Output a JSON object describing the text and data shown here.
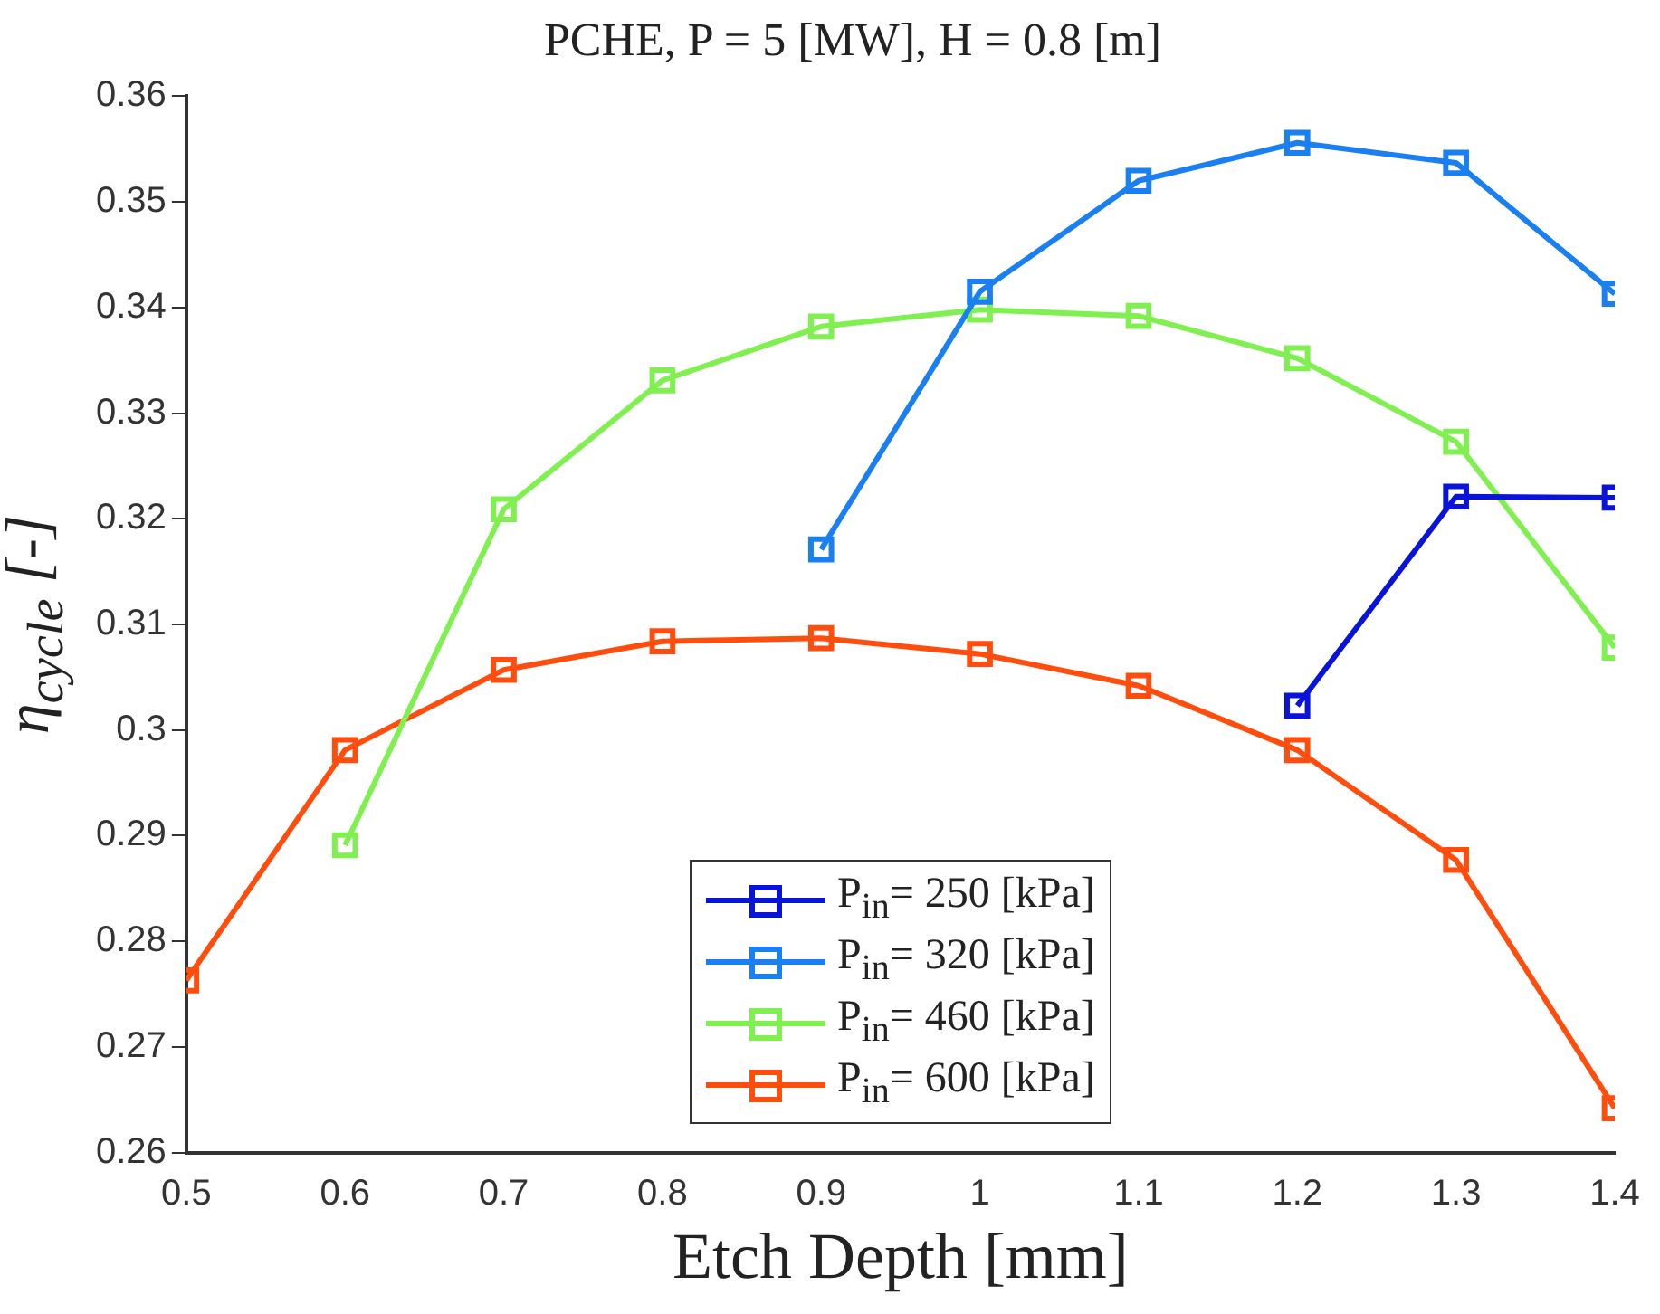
{
  "chart_data": {
    "type": "line",
    "title": "PCHE, P = 5 [MW], H = 0.8 [m]",
    "xlabel": "Etch Depth [mm]",
    "ylabel": "η$_{cycle}$  [-]",
    "xlim": [
      0.5,
      1.4
    ],
    "xticks": [
      0.5,
      0.6,
      0.7,
      0.8,
      0.9,
      1,
      1.1,
      1.2,
      1.3,
      1.4
    ],
    "ylim": [
      0.26,
      0.36
    ],
    "yticks": [
      0.26,
      0.27,
      0.28,
      0.29,
      0.3,
      0.31,
      0.32,
      0.33,
      0.34,
      0.35,
      0.36
    ],
    "grid": false,
    "legend": "bottom",
    "marker": "square",
    "line_style": "solid",
    "series": [
      {
        "name": "P$_{in}$= 250  [kPa]",
        "color": "#0a14d9",
        "x": [
          1.2,
          1.3,
          1.4
        ],
        "values": [
          0.3023,
          0.3221,
          0.322
        ]
      },
      {
        "name": "P$_{in}$= 320  [kPa]",
        "color": "#1a7ff0",
        "x": [
          0.9,
          1.0,
          1.1,
          1.2,
          1.3,
          1.4
        ],
        "values": [
          0.3171,
          0.3415,
          0.352,
          0.3556,
          0.3537,
          0.3413
        ]
      },
      {
        "name": "P$_{in}$= 460  [kPa]",
        "color": "#7ff04f",
        "x": [
          0.6,
          0.7,
          0.8,
          0.9,
          1.0,
          1.1,
          1.2,
          1.3,
          1.4
        ],
        "values": [
          0.2891,
          0.3209,
          0.3331,
          0.3382,
          0.3398,
          0.3392,
          0.3352,
          0.3273,
          0.3078
        ]
      },
      {
        "name": "P$_{in}$= 600  [kPa]",
        "color": "#ff4d0d",
        "x": [
          0.5,
          0.6,
          0.7,
          0.8,
          0.9,
          1.0,
          1.1,
          1.2,
          1.3,
          1.4
        ],
        "values": [
          0.2763,
          0.2981,
          0.3057,
          0.3084,
          0.3087,
          0.3072,
          0.3042,
          0.2981,
          0.2877,
          0.2642
        ]
      }
    ]
  }
}
